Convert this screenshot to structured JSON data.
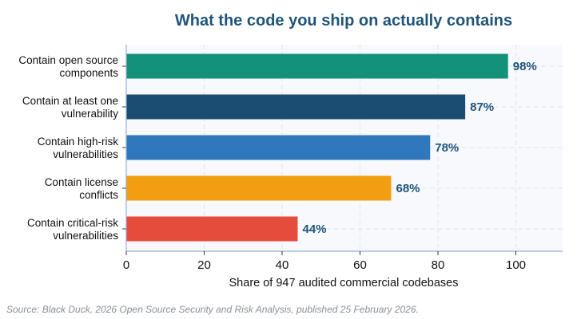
{
  "chart_data": {
    "type": "bar",
    "orientation": "horizontal",
    "title": "What the code you ship on actually contains",
    "xlabel": "Share of 947 audited commercial codebases",
    "ylabel": "",
    "xlim": [
      0,
      112
    ],
    "xticks": [
      0,
      20,
      40,
      60,
      80,
      100
    ],
    "grid": true,
    "categories": [
      [
        "Contain open source",
        "components"
      ],
      [
        "Contain at least one",
        "vulnerability"
      ],
      [
        "Contain high-risk",
        "vulnerabilities"
      ],
      [
        "Contain license",
        "conflicts"
      ],
      [
        "Contain critical-risk",
        "vulnerabilities"
      ]
    ],
    "values": [
      98,
      87,
      78,
      68,
      44
    ],
    "value_labels": [
      "98%",
      "87%",
      "78%",
      "68%",
      "44%"
    ],
    "colors": [
      "#149279",
      "#1b4c72",
      "#2f78bd",
      "#f29d12",
      "#e64c3c"
    ]
  },
  "colors": {
    "title": "#1f5478",
    "value_label": "#1f5478",
    "plot_background": "#f7f9fd",
    "axis": "#9aaed6",
    "grid": "#dde3ef"
  },
  "footer": {
    "source": "Source: Black Duck, 2026 Open Source Security and Risk Analysis, published 25 February 2026."
  }
}
